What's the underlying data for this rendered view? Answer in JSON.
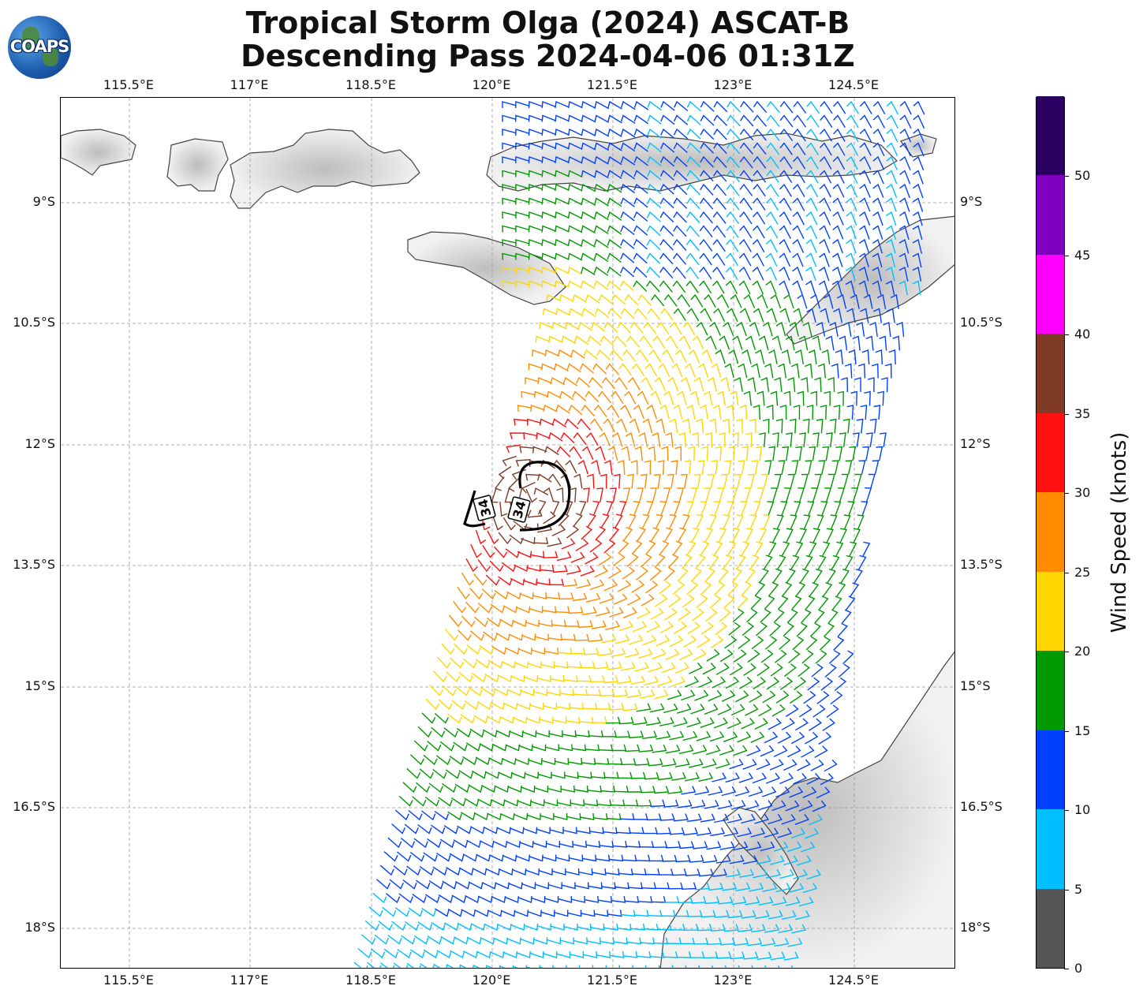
{
  "title_line1": "Tropical Storm Olga (2024) ASCAT-B",
  "title_line2": "Descending Pass 2024-04-06 01:31Z",
  "logo_text": "COAPS",
  "lon_labels": [
    "115.5°E",
    "117°E",
    "118.5°E",
    "120°E",
    "121.5°E",
    "123°E",
    "124.5°E"
  ],
  "lat_labels": [
    "9°S",
    "10.5°S",
    "12°S",
    "13.5°S",
    "15°S",
    "16.5°S",
    "18°S"
  ],
  "contour_label": "34",
  "colorbar": {
    "label": "Wind Speed (knots)",
    "ticks": [
      "0",
      "5",
      "10",
      "15",
      "20",
      "25",
      "30",
      "35",
      "40",
      "45",
      "50"
    ],
    "colors": [
      "#555555",
      "#00bfff",
      "#0040ff",
      "#009900",
      "#ffd700",
      "#ff8c00",
      "#ff1010",
      "#7f3b26",
      "#ff00ff",
      "#8000c0",
      "#2a0060"
    ]
  },
  "icons": {
    "logo": "coaps-globe-logo"
  }
}
